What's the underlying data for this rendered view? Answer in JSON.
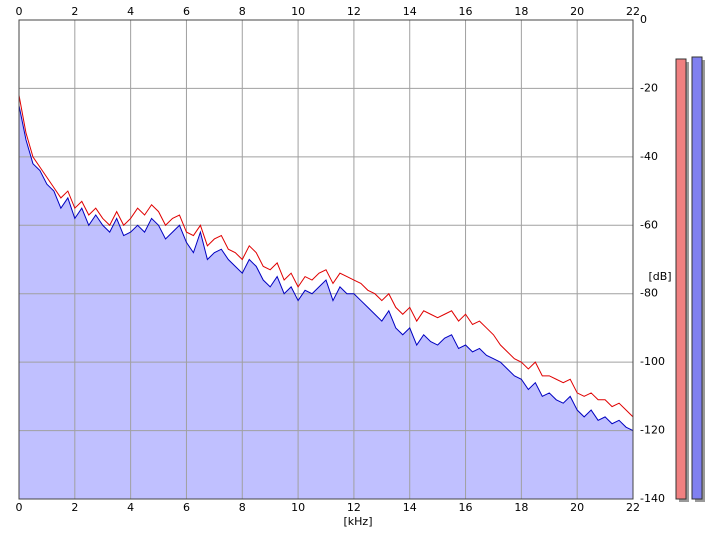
{
  "chart_data": {
    "type": "spectrum",
    "x_label": "[kHz]",
    "y_label": "[dB]",
    "xlim": [
      0,
      22
    ],
    "ylim": [
      -140,
      0
    ],
    "xticks": [
      0,
      2,
      4,
      6,
      8,
      10,
      12,
      14,
      16,
      18,
      20,
      22
    ],
    "yticks": [
      0,
      -20,
      -40,
      -60,
      -80,
      -100,
      -120,
      -140
    ],
    "grid": true,
    "x": [
      0,
      0.25,
      0.5,
      0.75,
      1,
      1.25,
      1.5,
      1.75,
      2,
      2.25,
      2.5,
      2.75,
      3,
      3.25,
      3.5,
      3.75,
      4,
      4.25,
      4.5,
      4.75,
      5,
      5.25,
      5.5,
      5.75,
      6,
      6.25,
      6.5,
      6.75,
      7,
      7.25,
      7.5,
      7.75,
      8,
      8.25,
      8.5,
      8.75,
      9,
      9.25,
      9.5,
      9.75,
      10,
      10.25,
      10.5,
      10.75,
      11,
      11.25,
      11.5,
      11.75,
      12,
      12.25,
      12.5,
      12.75,
      13,
      13.25,
      13.5,
      13.75,
      14,
      14.25,
      14.5,
      14.75,
      15,
      15.25,
      15.5,
      15.75,
      16,
      16.25,
      16.5,
      16.75,
      17,
      17.25,
      17.5,
      17.75,
      18,
      18.25,
      18.5,
      18.75,
      19,
      19.25,
      19.5,
      19.75,
      20,
      20.25,
      20.5,
      20.75,
      21,
      21.25,
      21.5,
      21.75,
      22
    ],
    "series": [
      {
        "color": "#e00000",
        "fill": null,
        "values": [
          -22,
          -33,
          -40,
          -43,
          -46,
          -49,
          -52,
          -50,
          -55,
          -53,
          -57,
          -55,
          -58,
          -60,
          -56,
          -60,
          -58,
          -55,
          -57,
          -54,
          -56,
          -60,
          -58,
          -57,
          -62,
          -63,
          -60,
          -66,
          -64,
          -63,
          -67,
          -68,
          -70,
          -66,
          -68,
          -72,
          -73,
          -71,
          -76,
          -74,
          -78,
          -75,
          -76,
          -74,
          -73,
          -77,
          -74,
          -75,
          -76,
          -77,
          -79,
          -80,
          -82,
          -80,
          -84,
          -86,
          -84,
          -88,
          -85,
          -86,
          -87,
          -86,
          -85,
          -88,
          -86,
          -89,
          -88,
          -90,
          -92,
          -95,
          -97,
          -99,
          -100,
          -102,
          -100,
          -104,
          -104,
          -105,
          -106,
          -105,
          -109,
          -110,
          -109,
          -111,
          -111,
          -113,
          -112,
          -114,
          -116
        ]
      },
      {
        "color": "#0000c0",
        "fill": "#c0c0ff",
        "values": [
          -25,
          -35,
          -42,
          -44,
          -48,
          -50,
          -55,
          -52,
          -58,
          -55,
          -60,
          -57,
          -60,
          -62,
          -58,
          -63,
          -62,
          -60,
          -62,
          -58,
          -60,
          -64,
          -62,
          -60,
          -65,
          -68,
          -62,
          -70,
          -68,
          -67,
          -70,
          -72,
          -74,
          -70,
          -72,
          -76,
          -78,
          -75,
          -80,
          -78,
          -82,
          -79,
          -80,
          -78,
          -76,
          -82,
          -78,
          -80,
          -80,
          -82,
          -84,
          -86,
          -88,
          -85,
          -90,
          -92,
          -90,
          -95,
          -92,
          -94,
          -95,
          -93,
          -92,
          -96,
          -95,
          -97,
          -96,
          -98,
          -99,
          -100,
          -102,
          -104,
          -105,
          -108,
          -106,
          -110,
          -109,
          -111,
          -112,
          -110,
          -114,
          -116,
          -114,
          -117,
          -116,
          -118,
          -117,
          -119,
          -120
        ]
      }
    ]
  }
}
